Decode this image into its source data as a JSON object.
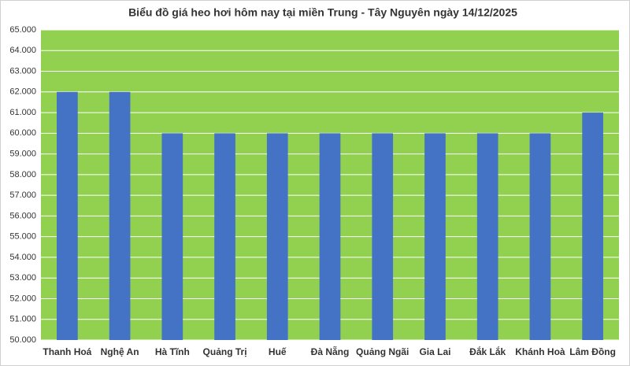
{
  "chart_data": {
    "type": "bar",
    "title": "Biểu đồ giá heo hơi hôm nay tại miền Trung - Tây Nguyên ngày 14/12/2025",
    "categories": [
      "Thanh Hoá",
      "Nghệ An",
      "Hà Tĩnh",
      "Quảng Trị",
      "Huế",
      "Đà Nẵng",
      "Quảng Ngãi",
      "Gia Lai",
      "Đắk Lắk",
      "Khánh Hoà",
      "Lâm Đồng"
    ],
    "values": [
      62000,
      62000,
      60000,
      60000,
      60000,
      60000,
      60000,
      60000,
      60000,
      60000,
      61000
    ],
    "color": "#4472c4",
    "plot_background": "#92d050",
    "ylim": [
      50000,
      65000
    ],
    "yticks": [
      {
        "value": 50000,
        "label": "50.000"
      },
      {
        "value": 51000,
        "label": "51.000"
      },
      {
        "value": 52000,
        "label": "52.000"
      },
      {
        "value": 53000,
        "label": "53.000"
      },
      {
        "value": 54000,
        "label": "54.000"
      },
      {
        "value": 55000,
        "label": "55.000"
      },
      {
        "value": 56000,
        "label": "56.000"
      },
      {
        "value": 57000,
        "label": "57.000"
      },
      {
        "value": 58000,
        "label": "58.000"
      },
      {
        "value": 59000,
        "label": "59.000"
      },
      {
        "value": 60000,
        "label": "60.000"
      },
      {
        "value": 61000,
        "label": "61.000"
      },
      {
        "value": 62000,
        "label": "62.000"
      },
      {
        "value": 63000,
        "label": "63.000"
      },
      {
        "value": 64000,
        "label": "64.000"
      },
      {
        "value": 65000,
        "label": "65.000"
      }
    ],
    "grid": true
  }
}
